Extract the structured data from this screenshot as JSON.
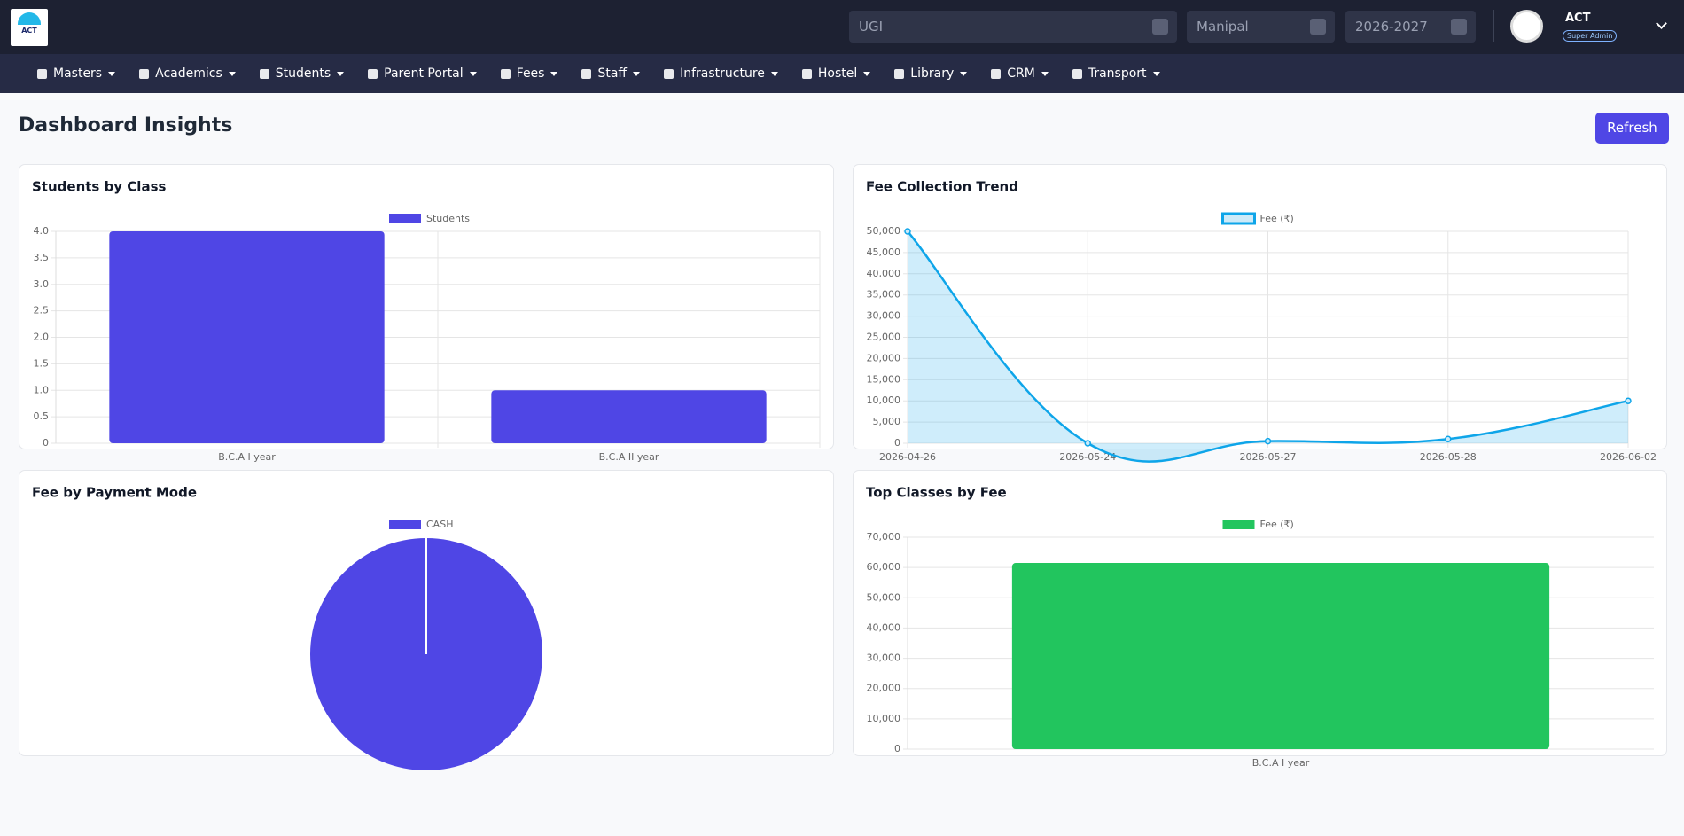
{
  "header": {
    "logo_text": "ACT",
    "school": "UGI",
    "campus": "Manipal",
    "session": "2026-2027",
    "user": "ACT",
    "role": "Super Admin"
  },
  "nav": [
    "Masters",
    "Academics",
    "Students",
    "Parent Portal",
    "Fees",
    "Staff",
    "Infrastructure",
    "Hostel",
    "Library",
    "CRM",
    "Transport"
  ],
  "page": {
    "title": "Dashboard Insights",
    "refresh": "Refresh"
  },
  "chart_data": [
    {
      "type": "bar",
      "title": "Students by Class",
      "categories": [
        "B.C.A I year",
        "B.C.A II year"
      ],
      "series": [
        {
          "name": "Students",
          "color": "#4f46e5",
          "values": [
            4,
            1
          ]
        }
      ],
      "ylim": [
        0,
        4
      ],
      "yticks": [
        0,
        0.5,
        {
          "value": 1,
          "label": "1.0"
        },
        1.5,
        {
          "value": 2,
          "label": "2.0"
        },
        2.5,
        {
          "value": 3,
          "label": "3.0"
        },
        3.5,
        {
          "value": 4,
          "label": "4.0"
        }
      ],
      "grid": true,
      "xgrid": true
    },
    {
      "type": "line",
      "title": "Fee Collection Trend",
      "categories": [
        "2026-04-26",
        "2026-05-24",
        "2026-05-27",
        "2026-05-28",
        "2026-06-02"
      ],
      "series": [
        {
          "name": "Fee (₹)",
          "color": "#0ea5e9",
          "values": [
            50000,
            0,
            500,
            1000,
            10000
          ]
        }
      ],
      "ylim": [
        0,
        50000
      ],
      "yticks": [
        0,
        {
          "value": 5000,
          "label": "5,000"
        },
        {
          "value": 10000,
          "label": "10,000"
        },
        {
          "value": 15000,
          "label": "15,000"
        },
        {
          "value": 20000,
          "label": "20,000"
        },
        {
          "value": 25000,
          "label": "25,000"
        },
        {
          "value": 30000,
          "label": "30,000"
        },
        {
          "value": 35000,
          "label": "35,000"
        },
        {
          "value": 40000,
          "label": "40,000"
        },
        {
          "value": 45000,
          "label": "45,000"
        },
        {
          "value": 50000,
          "label": "50,000"
        }
      ],
      "grid": true,
      "xgrid": true,
      "area": true,
      "smooth": true
    },
    {
      "type": "pie",
      "title": "Fee by Payment Mode",
      "categories": [
        "CASH"
      ],
      "values": [
        61500
      ],
      "colors": [
        "#4f46e5"
      ]
    },
    {
      "type": "bar",
      "title": "Top Classes by Fee",
      "categories": [
        "B.C.A I year"
      ],
      "series": [
        {
          "name": "Fee (₹)",
          "color": "#22c55e",
          "values": [
            61500
          ]
        }
      ],
      "ylim": [
        0,
        70000
      ],
      "yticks": [
        0,
        {
          "value": 10000,
          "label": "10,000"
        },
        {
          "value": 20000,
          "label": "20,000"
        },
        {
          "value": 30000,
          "label": "30,000"
        },
        {
          "value": 40000,
          "label": "40,000"
        },
        {
          "value": 50000,
          "label": "50,000"
        },
        {
          "value": 60000,
          "label": "60,000"
        },
        {
          "value": 70000,
          "label": "70,000"
        }
      ],
      "grid": true,
      "xgrid": false
    }
  ]
}
